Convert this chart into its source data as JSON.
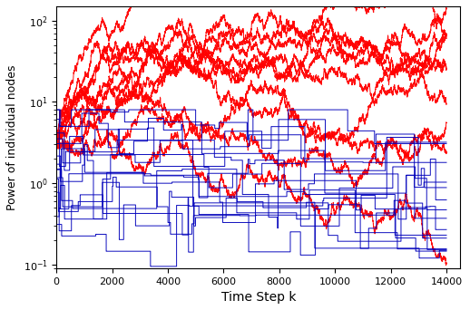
{
  "xlabel": "Time Step k",
  "ylabel": "Power of individual nodes",
  "xlim": [
    0,
    14500
  ],
  "ylim": [
    0.09,
    150
  ],
  "xticks": [
    0,
    2000,
    4000,
    6000,
    8000,
    10000,
    12000,
    14000
  ],
  "red_color": "#FF0000",
  "blue_color": "#0000BB",
  "T": 14000,
  "red_final_vals": [
    95,
    88,
    82,
    76,
    30,
    26,
    24,
    22,
    19,
    9,
    8
  ],
  "red_start_vals": [
    3,
    3,
    3,
    3,
    3,
    3,
    3,
    3,
    3,
    3,
    3
  ],
  "blue_final_vals": [
    3.2,
    2.8,
    1.8,
    1.0,
    0.95,
    0.55,
    0.42,
    0.35,
    0.28,
    0.22,
    0.2,
    0.18,
    0.16,
    0.14,
    0.13
  ],
  "seed": 99
}
